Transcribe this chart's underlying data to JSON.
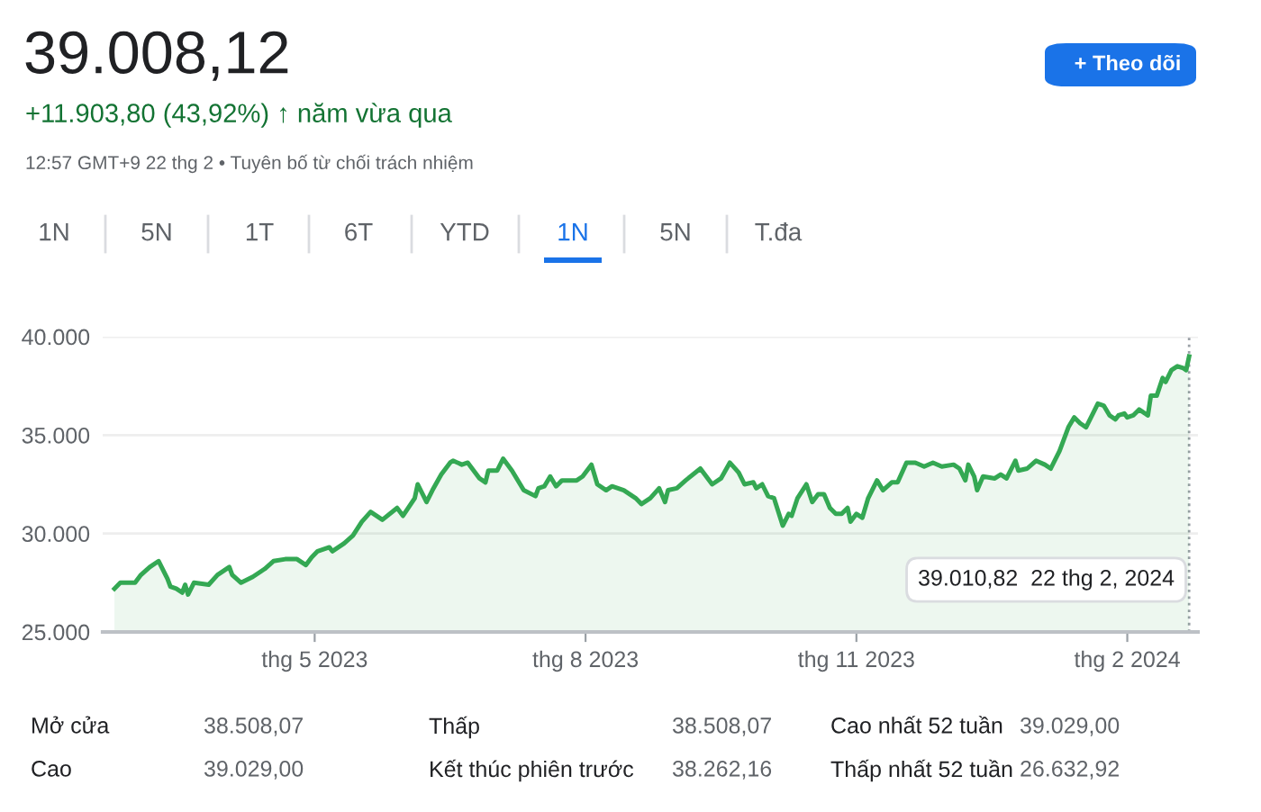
{
  "chart_data": {
    "type": "area",
    "title": "39.008,12",
    "subtitle": "+11.903,80 (43,92%) ↑ năm vừa qua",
    "x": [
      "2023-02-22",
      "2023-02-24",
      "2023-03-01",
      "2023-03-03",
      "2023-03-06",
      "2023-03-09",
      "2023-03-12",
      "2023-03-13",
      "2023-03-15",
      "2023-03-17",
      "2023-03-18",
      "2023-03-19",
      "2023-03-21",
      "2023-03-26",
      "2023-03-29",
      "2023-04-02",
      "2023-04-03",
      "2023-04-06",
      "2023-04-10",
      "2023-04-14",
      "2023-04-17",
      "2023-04-21",
      "2023-04-25",
      "2023-04-28",
      "2023-04-30",
      "2023-05-02",
      "2023-05-06",
      "2023-05-07",
      "2023-05-11",
      "2023-05-14",
      "2023-05-17",
      "2023-05-20",
      "2023-05-24",
      "2023-05-29",
      "2023-05-31",
      "2023-06-04",
      "2023-06-05",
      "2023-06-08",
      "2023-06-10",
      "2023-06-13",
      "2023-06-16",
      "2023-06-17",
      "2023-06-20",
      "2023-06-22",
      "2023-06-26",
      "2023-06-28",
      "2023-06-29",
      "2023-07-02",
      "2023-07-04",
      "2023-07-07",
      "2023-07-11",
      "2023-07-15",
      "2023-07-16",
      "2023-07-18",
      "2023-07-20",
      "2023-07-22",
      "2023-07-24",
      "2023-07-29",
      "2023-07-31",
      "2023-08-03",
      "2023-08-05",
      "2023-08-08",
      "2023-08-10",
      "2023-08-14",
      "2023-08-18",
      "2023-08-20",
      "2023-08-23",
      "2023-08-26",
      "2023-08-28",
      "2023-08-29",
      "2023-09-01",
      "2023-09-04",
      "2023-09-09",
      "2023-09-11",
      "2023-09-13",
      "2023-09-16",
      "2023-09-19",
      "2023-09-22",
      "2023-09-24",
      "2023-09-27",
      "2023-09-28",
      "2023-09-30",
      "2023-10-02",
      "2023-10-04",
      "2023-10-07",
      "2023-10-09",
      "2023-10-10",
      "2023-10-12",
      "2023-10-15",
      "2023-10-17",
      "2023-10-19",
      "2023-10-21",
      "2023-10-23",
      "2023-10-25",
      "2023-10-27",
      "2023-10-29",
      "2023-10-30",
      "2023-11-01",
      "2023-11-03",
      "2023-11-05",
      "2023-11-08",
      "2023-11-10",
      "2023-11-13",
      "2023-11-15",
      "2023-11-18",
      "2023-11-21",
      "2023-11-24",
      "2023-11-27",
      "2023-11-30",
      "2023-12-04",
      "2023-12-06",
      "2023-12-08",
      "2023-12-09",
      "2023-12-11",
      "2023-12-12",
      "2023-12-14",
      "2023-12-18",
      "2023-12-20",
      "2023-12-22",
      "2023-12-25",
      "2023-12-26",
      "2023-12-29",
      "2024-01-01",
      "2024-01-04",
      "2024-01-06",
      "2024-01-09",
      "2024-01-12",
      "2024-01-14",
      "2024-01-16",
      "2024-01-18",
      "2024-01-22",
      "2024-01-24",
      "2024-01-26",
      "2024-01-28",
      "2024-01-29",
      "2024-01-31",
      "2024-02-01",
      "2024-02-03",
      "2024-02-05",
      "2024-02-08",
      "2024-02-09",
      "2024-02-11",
      "2024-02-13",
      "2024-02-14",
      "2024-02-16",
      "2024-02-18",
      "2024-02-20",
      "2024-02-21",
      "2024-02-22"
    ],
    "series": [
      {
        "color": "#34a853",
        "values": [
          27200,
          27500,
          27500,
          27900,
          28300,
          28600,
          27700,
          27300,
          27200,
          27000,
          27400,
          26900,
          27500,
          27400,
          27900,
          28300,
          27900,
          27500,
          27800,
          28200,
          28600,
          28700,
          28700,
          28400,
          28800,
          29100,
          29300,
          29100,
          29500,
          29900,
          30600,
          31100,
          30700,
          31300,
          30900,
          31800,
          32500,
          31600,
          32200,
          33000,
          33600,
          33700,
          33500,
          33600,
          32800,
          32600,
          33200,
          33200,
          33800,
          33200,
          32200,
          31900,
          32300,
          32400,
          32900,
          32400,
          32700,
          32700,
          32900,
          33500,
          32500,
          32200,
          32400,
          32200,
          31800,
          31500,
          31800,
          32300,
          31600,
          32200,
          32300,
          32700,
          33300,
          32900,
          32500,
          32800,
          33600,
          33100,
          32500,
          32600,
          32300,
          32500,
          31900,
          31800,
          30400,
          31000,
          30900,
          31800,
          32500,
          31600,
          32000,
          32000,
          31300,
          31000,
          31000,
          31300,
          30600,
          31000,
          30800,
          31800,
          32700,
          32200,
          32600,
          32600,
          33600,
          33600,
          33400,
          33600,
          33400,
          33500,
          33300,
          32700,
          33500,
          32900,
          32200,
          32900,
          32800,
          33000,
          32800,
          33700,
          33200,
          33300,
          33700,
          33500,
          33300,
          34200,
          35400,
          35900,
          35600,
          35400,
          36600,
          36500,
          36000,
          35800,
          36000,
          36100,
          35900,
          36000,
          36300,
          36000,
          37000,
          37000,
          37900,
          37700,
          38300,
          38500,
          38400,
          38300,
          39000
        ]
      }
    ],
    "xlim": [
      "2023-02-18",
      "2024-02-25"
    ],
    "xticks": [
      {
        "value": "2023-05-01",
        "label": "thg 5 2023"
      },
      {
        "value": "2023-08-01",
        "label": "thg 8 2023"
      },
      {
        "value": "2023-11-01",
        "label": "thg 11 2023"
      },
      {
        "value": "2024-02-01",
        "label": "thg 2 2024"
      }
    ],
    "ylim": [
      25000,
      40000
    ],
    "yticks": [
      {
        "value": 25000,
        "label": "25.000"
      },
      {
        "value": 30000,
        "label": "30.000"
      },
      {
        "value": 35000,
        "label": "35.000"
      },
      {
        "value": 40000,
        "label": "40.000"
      }
    ],
    "grid": "y",
    "ref_lines": [
      {
        "axis": "x",
        "value": "2024-02-22",
        "color": "#9aa0a6",
        "line_style": "dotted"
      }
    ],
    "annotations": [
      "12:57 GMT+9 22 thg 2 • Tuyên bố từ chối trách nhiệm",
      "+ Theo dõi",
      "1N",
      "5N",
      "1T",
      "6T",
      "YTD",
      "1N",
      "5N",
      "T.đa",
      "Mở cửa",
      "38.508,07",
      "Thấp",
      "38.508,07",
      "Cao nhất 52 tuần",
      "39.029,00",
      "Cao",
      "39.029,00",
      "Kết thúc phiên trước",
      "38.262,16",
      "Thấp nhất 52 tuần",
      "26.632,92",
      "39.010,82  22 thg 2, 2024"
    ]
  }
}
